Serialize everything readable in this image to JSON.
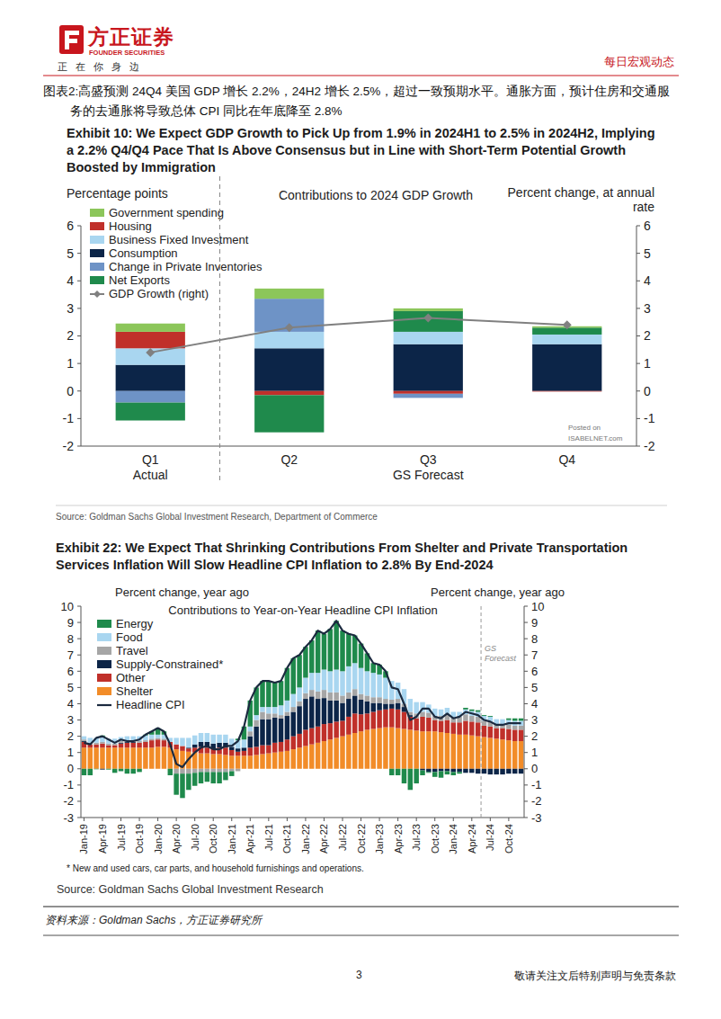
{
  "header": {
    "logo_cn": "方正证券",
    "logo_en": "FOUNDER SECURITIES",
    "slogan": "正 在 你 身 边",
    "report_type": "每日宏观动态"
  },
  "caption": "图表2:高盛预测 24Q4 美国 GDP 增长 2.2%，24H2 增长 2.5%，超过一致预期水平。通胀方面，预计住房和交通服务的去通胀将导致总体 CPI 同比在年底降至 2.8%",
  "chart_data": [
    {
      "type": "bar",
      "stacked": true,
      "title": "Exhibit 10: We Expect GDP Growth to Pick Up from 1.9% in 2024H1 to 2.5% in 2024H2, Implying a 2.2% Q4/Q4 Pace That Is Above Consensus but in Line with Short-Term Potential Growth Boosted by Immigration",
      "subtitle": "Contributions to 2024 GDP Growth",
      "y_label": "Percentage points",
      "y2_label": "Percent change, at annual rate",
      "categories": [
        "Q1",
        "Q2",
        "Q3",
        "Q4"
      ],
      "annotations": [
        {
          "text": "Actual",
          "span": [
            "Q1",
            "Q1"
          ]
        },
        {
          "text": "GS Forecast",
          "span": [
            "Q2",
            "Q4"
          ]
        }
      ],
      "watermark": [
        "Posted on",
        "ISABELNET.com"
      ],
      "legend": "upper left",
      "ylim": [
        -2,
        6
      ],
      "yticks": [
        -2,
        -1,
        0,
        1,
        2,
        3,
        4,
        5,
        6
      ],
      "y2lim": [
        -2,
        6
      ],
      "y2ticks": [
        -2,
        -1,
        0,
        1,
        2,
        3,
        4,
        5,
        6
      ],
      "series": [
        {
          "name": "Government spending",
          "color": "#8cc65a",
          "values": [
            0.3,
            0.37,
            0.1,
            0.05
          ]
        },
        {
          "name": "Housing",
          "color": "#c0302a",
          "values": [
            0.6,
            -0.15,
            -0.1,
            -0.02
          ]
        },
        {
          "name": "Business Fixed Investment",
          "color": "#a9d6f0",
          "values": [
            0.6,
            0.6,
            0.45,
            0.35
          ]
        },
        {
          "name": "Consumption",
          "color": "#0c2548",
          "values": [
            0.95,
            1.55,
            1.7,
            1.7
          ]
        },
        {
          "name": "Change in Private Inventories",
          "color": "#6e93c6",
          "values": [
            -0.42,
            1.2,
            -0.15,
            0.0
          ]
        },
        {
          "name": "Net Exports",
          "color": "#1f8a4c",
          "values": [
            -0.65,
            -1.35,
            0.75,
            0.25
          ]
        },
        {
          "name": "GDP Growth (right)",
          "color": "#808080",
          "type": "line",
          "marker": "diamond",
          "axis": "y2",
          "values": [
            1.4,
            2.3,
            2.65,
            2.4
          ]
        }
      ],
      "source": "Source: Goldman Sachs Global Investment Research, Department of Commerce"
    },
    {
      "type": "bar",
      "stacked": true,
      "title": "Exhibit 22: We Expect That Shrinking Contributions From Shelter and Private Transportation Services Inflation Will Slow Headline CPI Inflation to 2.8% By End-2024",
      "subtitle": "Contributions to Year-on-Year Headline CPI Inflation",
      "y_label": "Percent change, year ago",
      "y2_label": "Percent change, year ago",
      "categories": [
        "Jan-19",
        null,
        null,
        "Apr-19",
        null,
        null,
        "Jul-19",
        null,
        null,
        "Oct-19",
        null,
        null,
        "Jan-20",
        null,
        null,
        "Apr-20",
        null,
        null,
        "Jul-20",
        null,
        null,
        "Oct-20",
        null,
        null,
        "Jan-21",
        null,
        null,
        "Apr-21",
        null,
        null,
        "Jul-21",
        null,
        null,
        "Oct-21",
        null,
        null,
        "Jan-22",
        null,
        null,
        "Apr-22",
        null,
        null,
        "Jul-22",
        null,
        null,
        "Oct-22",
        null,
        null,
        "Jan-23",
        null,
        null,
        "Apr-23",
        null,
        null,
        "Jul-23",
        null,
        null,
        "Oct-23",
        null,
        null,
        "Jan-24",
        null,
        null,
        "Apr-24",
        null,
        null,
        "Jul-24",
        null,
        null,
        "Oct-24",
        null,
        null
      ],
      "annotations": [
        {
          "text": "GS Forecast",
          "start_index": 65
        }
      ],
      "legend": "upper left",
      "ylim": [
        -3,
        10
      ],
      "yticks": [
        -3,
        -2,
        -1,
        0,
        1,
        2,
        3,
        4,
        5,
        6,
        7,
        8,
        9,
        10
      ],
      "y2lim": [
        -3,
        10
      ],
      "y2ticks": [
        -3,
        -2,
        -1,
        0,
        1,
        2,
        3,
        4,
        5,
        6,
        7,
        8,
        9,
        10
      ],
      "series": [
        {
          "name": "Energy",
          "color": "#1f8a4c",
          "values": [
            -0.4,
            -0.4,
            -0.03,
            0.1,
            -0.05,
            -0.25,
            -0.15,
            -0.3,
            -0.3,
            -0.2,
            0.05,
            0.2,
            0.4,
            0.2,
            -0.4,
            -1.3,
            -1.5,
            -1.0,
            -0.8,
            -0.7,
            -0.6,
            -0.7,
            -0.7,
            -0.5,
            -0.3,
            0.1,
            0.8,
            1.6,
            1.7,
            1.6,
            1.6,
            1.5,
            1.5,
            2.0,
            2.2,
            2.0,
            1.9,
            2.0,
            2.6,
            2.2,
            2.6,
            3.0,
            2.5,
            2.0,
            1.7,
            1.5,
            1.1,
            0.6,
            0.6,
            0.4,
            -0.4,
            -0.4,
            -0.9,
            -1.3,
            -0.9,
            -0.3,
            -0.05,
            -0.3,
            -0.4,
            -0.2,
            -0.2,
            -0.1,
            0.1,
            0.1,
            0.1,
            0.05,
            0.05,
            0.0,
            0.0,
            0.1,
            0.15,
            0.15
          ]
        },
        {
          "name": "Food",
          "color": "#a9d6f0",
          "values": [
            0.2,
            0.3,
            0.3,
            0.3,
            0.3,
            0.3,
            0.25,
            0.25,
            0.25,
            0.3,
            0.3,
            0.25,
            0.2,
            0.25,
            0.25,
            0.4,
            0.5,
            0.6,
            0.55,
            0.55,
            0.55,
            0.55,
            0.5,
            0.5,
            0.5,
            0.5,
            0.5,
            0.3,
            0.3,
            0.3,
            0.4,
            0.4,
            0.6,
            0.7,
            0.8,
            0.85,
            0.95,
            1.05,
            1.15,
            1.25,
            1.3,
            1.4,
            1.5,
            1.6,
            1.6,
            1.6,
            1.5,
            1.5,
            1.4,
            1.3,
            1.15,
            1.0,
            0.9,
            0.8,
            0.7,
            0.6,
            0.5,
            0.45,
            0.4,
            0.4,
            0.35,
            0.3,
            0.3,
            0.3,
            0.3,
            0.3,
            0.3,
            0.3,
            0.3,
            0.3,
            0.3,
            0.3
          ]
        },
        {
          "name": "Travel",
          "color": "#a6a6a6",
          "values": [
            0.1,
            0.1,
            0.1,
            0.1,
            0.1,
            0.1,
            0.1,
            0.1,
            0.1,
            0.1,
            0.1,
            0.1,
            0.1,
            0.1,
            0.0,
            -0.3,
            -0.3,
            -0.3,
            -0.25,
            -0.2,
            -0.2,
            -0.2,
            -0.2,
            -0.2,
            -0.15,
            -0.15,
            0.0,
            0.3,
            0.4,
            0.45,
            0.35,
            0.25,
            0.2,
            0.25,
            0.3,
            0.3,
            0.35,
            0.4,
            0.45,
            0.5,
            0.5,
            0.5,
            0.45,
            0.4,
            0.4,
            0.35,
            0.35,
            0.35,
            0.35,
            0.3,
            0.25,
            0.25,
            0.2,
            0.2,
            0.3,
            0.3,
            0.3,
            0.25,
            0.3,
            0.35,
            0.3,
            0.35,
            0.4,
            0.35,
            0.35,
            0.3,
            0.3,
            0.25,
            0.25,
            0.25,
            0.25,
            0.25
          ]
        },
        {
          "name": "Supply-Constrained*",
          "color": "#0c2548",
          "values": [
            0.05,
            0.0,
            0.0,
            -0.05,
            0.0,
            0.0,
            0.05,
            0.05,
            0.05,
            0.0,
            0.0,
            0.0,
            0.0,
            0.0,
            0.0,
            0.0,
            0.0,
            0.05,
            0.2,
            0.3,
            0.35,
            0.3,
            0.3,
            0.3,
            0.2,
            0.2,
            0.2,
            0.7,
            1.25,
            1.6,
            1.6,
            1.55,
            1.45,
            1.45,
            1.5,
            1.7,
            1.9,
            1.95,
            1.7,
            1.6,
            1.4,
            1.3,
            1.1,
            1.1,
            1.1,
            0.9,
            0.75,
            0.55,
            0.45,
            0.35,
            0.3,
            0.4,
            0.3,
            0.1,
            0.0,
            -0.1,
            -0.2,
            -0.2,
            -0.15,
            -0.15,
            -0.2,
            -0.2,
            -0.25,
            -0.25,
            -0.3,
            -0.3,
            -0.35,
            -0.35,
            -0.35,
            -0.3,
            -0.3,
            -0.3
          ]
        },
        {
          "name": "Other",
          "color": "#c0302a",
          "values": [
            0.35,
            0.2,
            0.2,
            0.25,
            0.15,
            0.15,
            0.25,
            0.3,
            0.3,
            0.3,
            0.35,
            0.45,
            0.45,
            0.4,
            0.35,
            0.3,
            0.3,
            0.2,
            0.3,
            0.4,
            0.35,
            0.35,
            0.4,
            0.45,
            0.35,
            0.25,
            0.3,
            0.5,
            0.5,
            0.55,
            0.5,
            0.6,
            0.6,
            0.7,
            0.8,
            0.85,
            1.0,
            1.0,
            1.0,
            1.05,
            1.0,
            1.0,
            0.95,
            1.1,
            1.2,
            1.05,
            1.0,
            1.05,
            1.1,
            1.1,
            1.15,
            1.15,
            1.05,
            0.8,
            0.75,
            0.9,
            0.85,
            0.7,
            0.7,
            0.8,
            0.7,
            0.75,
            0.85,
            0.85,
            0.85,
            0.7,
            0.7,
            0.65,
            0.7,
            0.7,
            0.7,
            0.7
          ]
        },
        {
          "name": "Shelter",
          "color": "#f28c28",
          "values": [
            1.3,
            1.3,
            1.3,
            1.3,
            1.3,
            1.3,
            1.3,
            1.3,
            1.3,
            1.3,
            1.3,
            1.3,
            1.35,
            1.35,
            1.3,
            1.2,
            1.1,
            1.05,
            1.0,
            0.95,
            0.95,
            0.9,
            0.9,
            0.85,
            0.8,
            0.8,
            0.8,
            0.8,
            0.85,
            0.9,
            0.95,
            1.0,
            1.05,
            1.1,
            1.2,
            1.3,
            1.4,
            1.5,
            1.6,
            1.7,
            1.8,
            1.9,
            2.0,
            2.1,
            2.2,
            2.3,
            2.4,
            2.45,
            2.5,
            2.55,
            2.55,
            2.5,
            2.45,
            2.4,
            2.35,
            2.3,
            2.3,
            2.3,
            2.25,
            2.2,
            2.15,
            2.1,
            2.1,
            2.05,
            2.0,
            1.95,
            1.9,
            1.85,
            1.8,
            1.75,
            1.7,
            1.7
          ]
        },
        {
          "name": "Headline CPI",
          "color": "#1b2a3f",
          "type": "line",
          "values": [
            1.6,
            1.5,
            1.9,
            2.0,
            1.8,
            1.6,
            1.8,
            1.7,
            1.7,
            1.8,
            2.1,
            2.3,
            2.5,
            2.3,
            1.5,
            0.3,
            0.1,
            0.6,
            1.0,
            1.3,
            1.4,
            1.2,
            1.2,
            1.4,
            1.4,
            1.7,
            2.6,
            4.2,
            5.0,
            5.4,
            5.4,
            5.3,
            5.4,
            6.2,
            6.8,
            7.0,
            7.5,
            7.9,
            8.5,
            8.3,
            8.6,
            9.1,
            8.5,
            8.3,
            8.2,
            7.7,
            7.1,
            6.5,
            6.4,
            6.0,
            5.0,
            4.9,
            4.0,
            3.0,
            3.2,
            3.7,
            3.7,
            3.2,
            3.1,
            3.4,
            3.1,
            3.2,
            3.5,
            3.4,
            3.3,
            3.0,
            2.9,
            2.7,
            2.7,
            2.8,
            2.8,
            2.8
          ]
        }
      ],
      "note": "* New and used cars, car parts, and household furnishings and operations.",
      "source": "Source: Goldman Sachs Global Investment Research"
    }
  ],
  "source": "资料来源：Goldman Sachs，方正证券研究所",
  "footer": {
    "page": 3,
    "disclaimer": "敬请关注文后特别声明与免责条款"
  }
}
